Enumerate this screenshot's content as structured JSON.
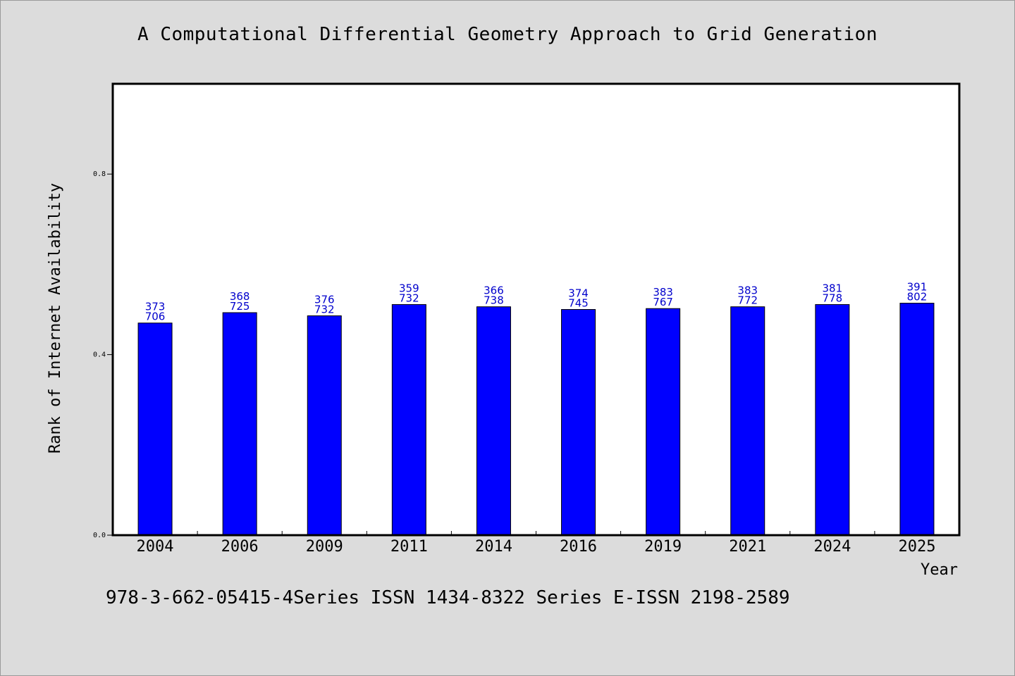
{
  "colors": {
    "background": "#dcdcdc",
    "plot_background": "#ffffff",
    "bar_fill": "#0000ff",
    "bar_label": "#0000cc"
  },
  "chart_data": {
    "type": "bar",
    "title": "A Computational Differential Geometry Approach to Grid Generation",
    "xlabel": "Year",
    "ylabel": "Rank of Internet Availability",
    "ylim": [
      0,
      1.0
    ],
    "yticks": [
      "0.0",
      "0.4",
      "0.8"
    ],
    "categories": [
      "2004",
      "2006",
      "2009",
      "2011",
      "2014",
      "2016",
      "2019",
      "2021",
      "2024",
      "2025"
    ],
    "values": [
      0.47,
      0.493,
      0.486,
      0.511,
      0.506,
      0.5,
      0.502,
      0.506,
      0.511,
      0.514
    ],
    "label_top": [
      "373",
      "368",
      "376",
      "359",
      "366",
      "374",
      "383",
      "383",
      "381",
      "391"
    ],
    "label_bottom": [
      "706",
      "725",
      "732",
      "732",
      "738",
      "745",
      "767",
      "772",
      "778",
      "802"
    ],
    "grid": false,
    "legend": "none"
  },
  "footer": "978-3-662-05415-4Series ISSN 1434-8322 Series E-ISSN 2198-2589"
}
